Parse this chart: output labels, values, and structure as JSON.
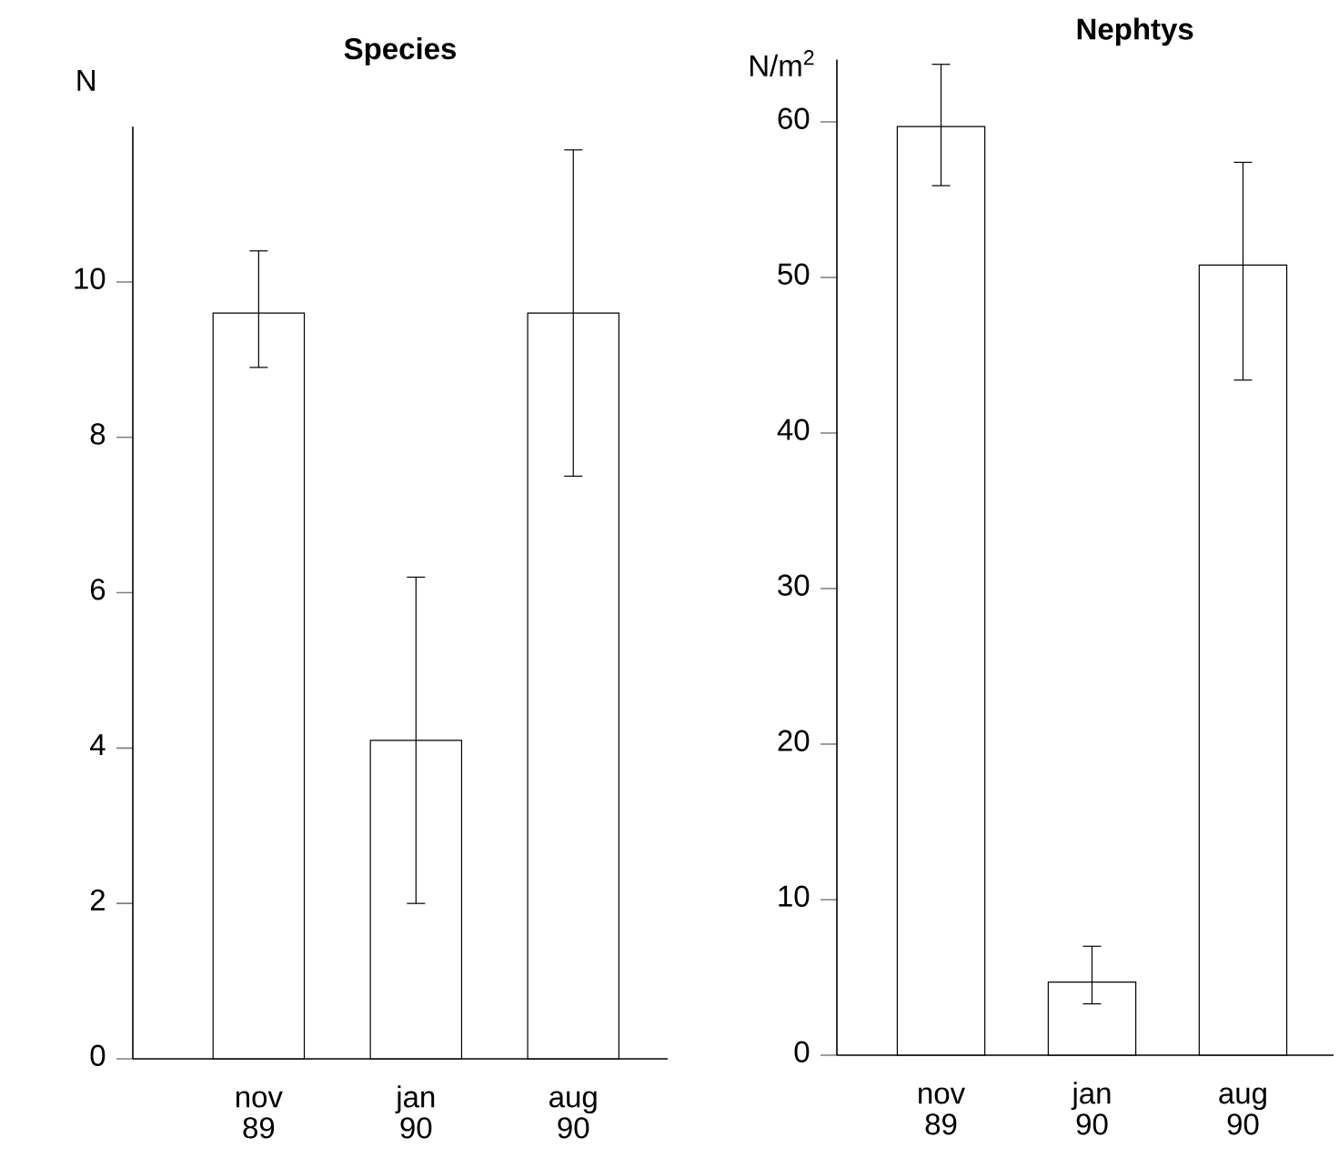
{
  "chart_data": [
    {
      "type": "bar",
      "title": "Species",
      "ylabel": "N",
      "categories": [
        "nov 89",
        "jan 90",
        "aug 90"
      ],
      "color": "#ffffff",
      "values": [
        9.6,
        4.1,
        9.6
      ],
      "errors": [
        [
          8.9,
          10.4
        ],
        [
          2.0,
          6.2
        ],
        [
          7.5,
          11.7
        ]
      ],
      "ylim": [
        0,
        12
      ],
      "yticks": [
        0,
        2,
        4,
        6,
        8,
        10
      ]
    },
    {
      "type": "bar",
      "title": "Nephtys",
      "ylabel": "N/m$^{2}$",
      "categories": [
        "nov 89",
        "jan 90",
        "aug 90"
      ],
      "color": "#ffffff",
      "values": [
        59.7,
        4.7,
        50.8
      ],
      "errors": [
        [
          55.9,
          63.7
        ],
        [
          3.3,
          7.0
        ],
        [
          43.4,
          57.4
        ]
      ],
      "ylim": [
        0,
        64
      ],
      "yticks": [
        0,
        10,
        20,
        30,
        40,
        50,
        60
      ]
    }
  ]
}
